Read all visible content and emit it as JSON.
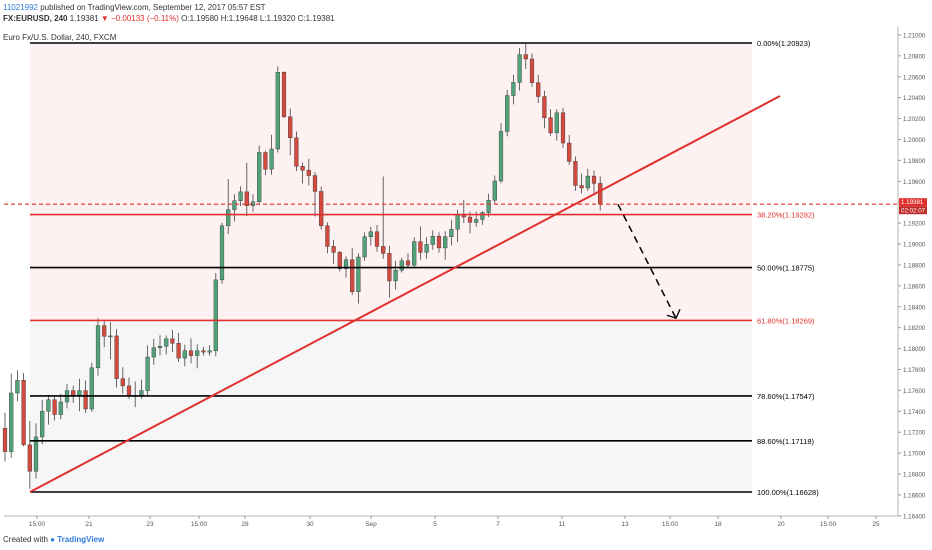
{
  "header": {
    "user": "11021992",
    "published_text": "published on TradingView.com, September 12, 2017 05:57 EST",
    "symbol": "FX:EURUSD, 240",
    "last": "1.19381",
    "change": "▼ −0.00133 (−0.11%)",
    "ohlc": "O:1.19580 H:1.19648 L:1.19320 C:1.19381",
    "instrument": "Euro Fx/U.S. Dollar, 240, FXCM"
  },
  "footer": {
    "created_with": "Created with",
    "brand": "TradingView"
  },
  "colors": {
    "bull": "#53a37a",
    "bear": "#d44a3e",
    "fib_red": "#e0302d",
    "fib_black": "#000000",
    "trend": "#e0302d",
    "band_pink": "#fdecec",
    "band_gray": "#efefef"
  },
  "chart_data": {
    "type": "candlestick",
    "y_axis_ticks": [
      "1.21000",
      "1.20800",
      "1.20600",
      "1.20400",
      "1.20200",
      "1.20000",
      "1.19800",
      "1.19600",
      "1.19400",
      "1.19200",
      "1.19000",
      "1.18800",
      "1.18600",
      "1.18400",
      "1.18200",
      "1.18000",
      "1.17800",
      "1.17600",
      "1.17400",
      "1.17200",
      "1.17000",
      "1.16800",
      "1.16600",
      "1.16400"
    ],
    "y_axis_range": [
      1.1635,
      1.2108
    ],
    "x_axis_ticks": [
      "15:00",
      "21",
      "23",
      "15:00",
      "28",
      "30",
      "Sep",
      "5",
      "7",
      "11",
      "13",
      "15:00",
      "18",
      "20",
      "15:00",
      "25"
    ],
    "price_label": "1.19381",
    "countdown_label": "02:02:07",
    "fib_levels": [
      {
        "label": "0.00%(1.20923)",
        "price": 1.20923,
        "color": "#000000"
      },
      {
        "label": "38.20%(1.19282)",
        "price": 1.19282,
        "color": "#e0302d"
      },
      {
        "label": "50.00%(1.18775)",
        "price": 1.18775,
        "color": "#000000"
      },
      {
        "label": "61.80%(1.18269)",
        "price": 1.18269,
        "color": "#e0302d"
      },
      {
        "label": "78.60%(1.17547)",
        "price": 1.17547,
        "color": "#000000"
      },
      {
        "label": "88.60%(1.17118)",
        "price": 1.17118,
        "color": "#000000"
      },
      {
        "label": "100.00%(1.16628)",
        "price": 1.16628,
        "color": "#000000"
      }
    ],
    "last_price": 1.19381,
    "trendline": {
      "start_price": 1.16628,
      "end_price": 1.20416
    },
    "projection": {
      "start_price": 1.1938,
      "end_price": 1.1829
    },
    "candles": [
      [
        1.17238,
        1.17387,
        1.16918,
        1.17014
      ],
      [
        1.17014,
        1.17761,
        1.16957,
        1.17575
      ],
      [
        1.17575,
        1.17794,
        1.17497,
        1.17697
      ],
      [
        1.17697,
        1.17767,
        1.17065,
        1.17079
      ],
      [
        1.17079,
        1.17308,
        1.16658,
        1.16826
      ],
      [
        1.16826,
        1.17284,
        1.16756,
        1.17155
      ],
      [
        1.17155,
        1.17509,
        1.17084,
        1.174
      ],
      [
        1.174,
        1.17556,
        1.17272,
        1.17511
      ],
      [
        1.17511,
        1.17542,
        1.17313,
        1.17369
      ],
      [
        1.17369,
        1.17566,
        1.17323,
        1.17489
      ],
      [
        1.17489,
        1.17661,
        1.17428,
        1.17598
      ],
      [
        1.17598,
        1.17645,
        1.1748,
        1.17552
      ],
      [
        1.17552,
        1.17712,
        1.17401,
        1.17598
      ],
      [
        1.17598,
        1.17694,
        1.17384,
        1.17422
      ],
      [
        1.17422,
        1.17865,
        1.17394,
        1.17816
      ],
      [
        1.17816,
        1.1829,
        1.17741,
        1.1822
      ],
      [
        1.1822,
        1.18262,
        1.18014,
        1.18117
      ],
      [
        1.18117,
        1.18253,
        1.17898,
        1.18121
      ],
      [
        1.18121,
        1.18187,
        1.17628,
        1.17713
      ],
      [
        1.17713,
        1.17821,
        1.17567,
        1.17643
      ],
      [
        1.17643,
        1.17723,
        1.1752,
        1.17543
      ],
      [
        1.17543,
        1.17684,
        1.1744,
        1.17552
      ],
      [
        1.17552,
        1.17703,
        1.1752,
        1.17598
      ],
      [
        1.17598,
        1.18032,
        1.17552,
        1.17919
      ],
      [
        1.17919,
        1.18093,
        1.17844,
        1.18008
      ],
      [
        1.18008,
        1.18126,
        1.17933,
        1.18023
      ],
      [
        1.18023,
        1.18126,
        1.17942,
        1.18093
      ],
      [
        1.18093,
        1.18178,
        1.17966,
        1.18051
      ],
      [
        1.18051,
        1.18149,
        1.17872,
        1.17909
      ],
      [
        1.17909,
        1.18037,
        1.1783,
        1.1798
      ],
      [
        1.1798,
        1.18098,
        1.17858,
        1.17933
      ],
      [
        1.17933,
        1.18041,
        1.17811,
        1.1798
      ],
      [
        1.1798,
        1.18018,
        1.17933,
        1.17966
      ],
      [
        1.17966,
        1.18032,
        1.17933,
        1.1798
      ],
      [
        1.1798,
        1.18722,
        1.17928,
        1.18657
      ],
      [
        1.18657,
        1.19202,
        1.18619,
        1.19174
      ],
      [
        1.19174,
        1.19622,
        1.19094,
        1.19329
      ],
      [
        1.19329,
        1.19476,
        1.19216,
        1.19414
      ],
      [
        1.19414,
        1.19552,
        1.19362,
        1.19499
      ],
      [
        1.19499,
        1.19777,
        1.19268,
        1.19367
      ],
      [
        1.19367,
        1.19476,
        1.1931,
        1.19404
      ],
      [
        1.19404,
        1.19942,
        1.19386,
        1.19876
      ],
      [
        1.19876,
        1.19895,
        1.19659,
        1.19716
      ],
      [
        1.19716,
        1.20045,
        1.19664,
        1.19909
      ],
      [
        1.19909,
        1.20699,
        1.19876,
        1.20643
      ],
      [
        1.20643,
        1.20652,
        1.20204,
        1.20218
      ],
      [
        1.20218,
        1.20296,
        1.19848,
        1.20016
      ],
      [
        1.20016,
        1.20077,
        1.19697,
        1.19744
      ],
      [
        1.19744,
        1.19777,
        1.1958,
        1.19706
      ],
      [
        1.19706,
        1.19815,
        1.1956,
        1.19655
      ],
      [
        1.19655,
        1.19688,
        1.19263,
        1.19503
      ],
      [
        1.19503,
        1.1955,
        1.19137,
        1.19174
      ],
      [
        1.19174,
        1.19207,
        1.18911,
        1.18977
      ],
      [
        1.18977,
        1.19041,
        1.18806,
        1.1892
      ],
      [
        1.1892,
        1.18935,
        1.18737,
        1.18765
      ],
      [
        1.18765,
        1.18883,
        1.1868,
        1.1885
      ],
      [
        1.1885,
        1.18963,
        1.18511,
        1.18544
      ],
      [
        1.18544,
        1.18911,
        1.18431,
        1.18876
      ],
      [
        1.18876,
        1.19112,
        1.1884,
        1.1907
      ],
      [
        1.1907,
        1.19164,
        1.18986,
        1.19117
      ],
      [
        1.19117,
        1.19183,
        1.18925,
        1.18977
      ],
      [
        1.18977,
        1.19646,
        1.18859,
        1.18911
      ],
      [
        1.18911,
        1.18982,
        1.18486,
        1.18647
      ],
      [
        1.18647,
        1.1884,
        1.18565,
        1.1875
      ],
      [
        1.1875,
        1.18869,
        1.18727,
        1.1884
      ],
      [
        1.1884,
        1.18911,
        1.18769,
        1.18798
      ],
      [
        1.18798,
        1.19065,
        1.18774,
        1.19023
      ],
      [
        1.19023,
        1.19169,
        1.1885,
        1.1892
      ],
      [
        1.1892,
        1.19065,
        1.18859,
        1.18996
      ],
      [
        1.18996,
        1.19131,
        1.18944,
        1.19075
      ],
      [
        1.19075,
        1.19112,
        1.18918,
        1.18963
      ],
      [
        1.18963,
        1.19122,
        1.1885,
        1.1907
      ],
      [
        1.1907,
        1.19231,
        1.18986,
        1.19141
      ],
      [
        1.19141,
        1.19329,
        1.19018,
        1.19282
      ],
      [
        1.19282,
        1.19423,
        1.19202,
        1.19258
      ],
      [
        1.19258,
        1.1931,
        1.19103,
        1.19207
      ],
      [
        1.19207,
        1.1931,
        1.19164,
        1.19235
      ],
      [
        1.19235,
        1.19315,
        1.19183,
        1.19301
      ],
      [
        1.19301,
        1.1948,
        1.19258,
        1.19419
      ],
      [
        1.19419,
        1.19655,
        1.19386,
        1.19603
      ],
      [
        1.19603,
        1.20157,
        1.1958,
        1.20077
      ],
      [
        1.20077,
        1.20476,
        1.2003,
        1.2042
      ],
      [
        1.2042,
        1.20619,
        1.20336,
        1.20546
      ],
      [
        1.20546,
        1.20874,
        1.20468,
        1.20812
      ],
      [
        1.20812,
        1.20924,
        1.20674,
        1.2077
      ],
      [
        1.2077,
        1.20822,
        1.20505,
        1.20543
      ],
      [
        1.20543,
        1.20619,
        1.2035,
        1.20411
      ],
      [
        1.20411,
        1.20466,
        1.20108,
        1.20207
      ],
      [
        1.20207,
        1.20289,
        1.20034,
        1.20063
      ],
      [
        1.20063,
        1.20289,
        1.19989,
        1.20256
      ],
      [
        1.20256,
        1.20303,
        1.19918,
        1.19966
      ],
      [
        1.19966,
        1.20044,
        1.19758,
        1.19791
      ],
      [
        1.19791,
        1.19838,
        1.19509,
        1.1956
      ],
      [
        1.1956,
        1.19673,
        1.19485,
        1.19536
      ],
      [
        1.19536,
        1.1972,
        1.19508,
        1.1965
      ],
      [
        1.1965,
        1.19703,
        1.19485,
        1.1958
      ],
      [
        1.1958,
        1.19648,
        1.1932,
        1.19381
      ]
    ]
  }
}
